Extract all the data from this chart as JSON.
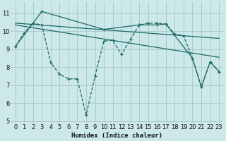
{
  "xlabel": "Humidex (Indice chaleur)",
  "bg_color": "#cce8e8",
  "grid_color": "#aacccc",
  "line_color": "#1a6868",
  "xlim": [
    -0.5,
    23.5
  ],
  "ylim": [
    4.9,
    11.6
  ],
  "yticks": [
    5,
    6,
    7,
    8,
    9,
    10,
    11
  ],
  "xticks": [
    0,
    1,
    2,
    3,
    4,
    5,
    6,
    7,
    8,
    9,
    10,
    11,
    12,
    13,
    14,
    15,
    16,
    17,
    18,
    19,
    20,
    21,
    22,
    23
  ],
  "line_dashed_x": [
    0,
    1,
    2,
    3,
    4,
    5,
    6,
    7,
    8,
    9,
    10,
    11,
    12,
    13,
    14,
    15,
    16,
    17,
    18,
    19,
    20,
    21,
    22,
    23
  ],
  "line_dashed_y": [
    9.15,
    9.9,
    10.45,
    10.35,
    8.25,
    7.6,
    7.35,
    7.35,
    5.35,
    7.5,
    9.45,
    9.5,
    8.7,
    9.55,
    10.35,
    10.45,
    10.45,
    10.4,
    9.85,
    9.75,
    8.5,
    6.9,
    8.3,
    7.75
  ],
  "line_solid_markers_x": [
    0,
    3,
    10,
    14,
    16,
    17,
    20,
    21,
    22,
    23
  ],
  "line_solid_markers_y": [
    9.15,
    11.1,
    10.1,
    10.35,
    10.35,
    10.4,
    8.5,
    6.9,
    8.3,
    7.75
  ],
  "trend1_x": [
    0,
    23
  ],
  "trend1_y": [
    10.45,
    9.6
  ],
  "trend2_x": [
    0,
    23
  ],
  "trend2_y": [
    10.35,
    8.55
  ]
}
